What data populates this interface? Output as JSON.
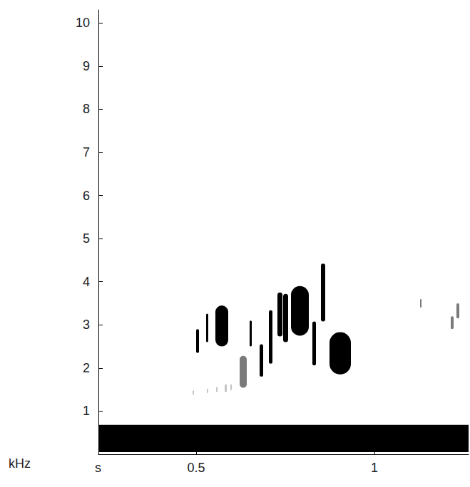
{
  "chart_data": {
    "type": "spectrogram",
    "x_label": "s",
    "y_label": "kHz",
    "xlim": [
      0.226,
      1.264
    ],
    "ylim": [
      0,
      10.3
    ],
    "xticks": [
      0.5,
      1
    ],
    "yticks": [
      1,
      2,
      3,
      4,
      5,
      6,
      7,
      8,
      9,
      10
    ],
    "grid": false,
    "series": [
      {
        "color": "#000000",
        "values": [
          [
            0.226,
            1.264,
            0.05,
            0.68
          ],
          [
            0.5,
            0.508,
            2.35,
            2.9
          ],
          [
            0.528,
            0.534,
            2.6,
            3.26
          ],
          [
            0.554,
            0.59,
            2.5,
            3.45
          ],
          [
            0.65,
            0.656,
            2.5,
            3.1
          ],
          [
            0.678,
            0.688,
            1.8,
            2.55
          ],
          [
            0.704,
            0.714,
            2.1,
            3.34
          ],
          [
            0.728,
            0.742,
            2.73,
            3.75
          ],
          [
            0.744,
            0.758,
            2.6,
            3.72
          ],
          [
            0.766,
            0.816,
            2.75,
            3.9
          ],
          [
            0.826,
            0.836,
            2.06,
            3.08
          ],
          [
            0.85,
            0.862,
            3.08,
            4.42
          ],
          [
            0.874,
            0.934,
            1.85,
            2.83
          ]
        ]
      },
      {
        "color": "#7a7a7a",
        "values": [
          [
            0.622,
            0.642,
            1.54,
            2.28
          ],
          [
            1.128,
            1.132,
            3.4,
            3.6
          ],
          [
            1.214,
            1.222,
            2.9,
            3.2
          ],
          [
            1.23,
            1.238,
            3.15,
            3.5
          ]
        ]
      },
      {
        "color": "#c4c4c4",
        "values": [
          [
            0.49,
            0.494,
            1.38,
            1.48
          ],
          [
            0.53,
            0.534,
            1.42,
            1.52
          ],
          [
            0.556,
            0.56,
            1.44,
            1.56
          ],
          [
            0.58,
            0.586,
            1.44,
            1.62
          ],
          [
            0.596,
            0.6,
            1.48,
            1.62
          ]
        ]
      }
    ]
  }
}
